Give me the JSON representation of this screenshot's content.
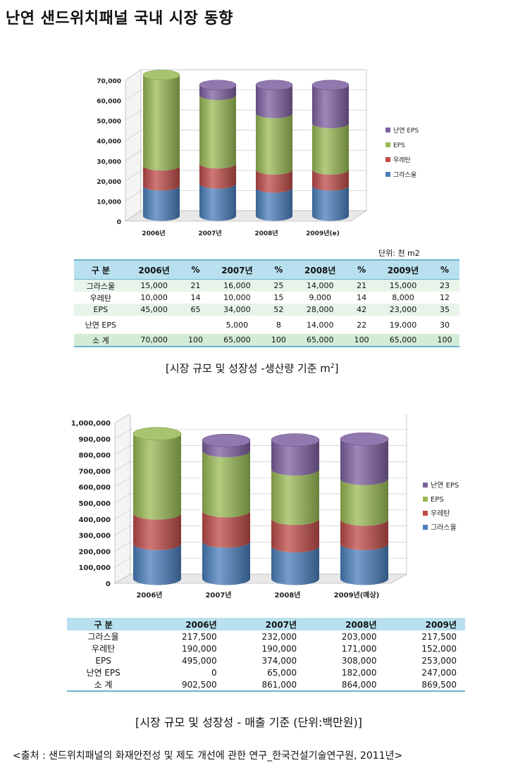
{
  "title": "난연 샌드위치패널 국내 시장 동향",
  "colors": {
    "glasswool": "#4a7ebb",
    "urethane": "#be4b48",
    "eps": "#98b954",
    "fr_eps": "#7d60a0",
    "table_header": "#b9e0ef",
    "table_row": "#e7f4ea"
  },
  "chart_data": [
    {
      "type": "bar",
      "stacked": true,
      "categories": [
        "2006년",
        "2007년",
        "2008년",
        "2009년(e)"
      ],
      "series": [
        {
          "name": "그라스울",
          "values": [
            15000,
            16000,
            14000,
            15000
          ]
        },
        {
          "name": "우레탄",
          "values": [
            10000,
            10000,
            9000,
            8000
          ]
        },
        {
          "name": "EPS",
          "values": [
            45000,
            34000,
            28000,
            23000
          ]
        },
        {
          "name": "난연 EPS",
          "values": [
            0,
            5000,
            14000,
            19000
          ]
        }
      ],
      "yticks": [
        "0",
        "10,000",
        "20,000",
        "30,000",
        "40,000",
        "50,000",
        "60,000",
        "70,000"
      ],
      "ylim": [
        0,
        70000
      ],
      "legend": "right"
    },
    {
      "type": "bar",
      "stacked": true,
      "categories": [
        "2006년",
        "2007년",
        "2008년",
        "2009년(예상)"
      ],
      "series": [
        {
          "name": "그라스울",
          "values": [
            217500,
            232000,
            203000,
            217500
          ]
        },
        {
          "name": "우레탄",
          "values": [
            190000,
            190000,
            171000,
            152000
          ]
        },
        {
          "name": "EPS",
          "values": [
            495000,
            374000,
            308000,
            253000
          ]
        },
        {
          "name": "난연 EPS",
          "values": [
            0,
            65000,
            182000,
            247000
          ]
        }
      ],
      "yticks": [
        "0",
        "100,000",
        "200,000",
        "300,000",
        "400,000",
        "500,000",
        "600,000",
        "700,000",
        "800,000",
        "900,000",
        "1,000,000"
      ],
      "ylim": [
        0,
        1000000
      ],
      "legend": "right"
    }
  ],
  "table1": {
    "unit": "단위: 천 m2",
    "headers": [
      "구 분",
      "2006년",
      "%",
      "2007년",
      "%",
      "2008년",
      "%",
      "2009년",
      "%"
    ],
    "rows": [
      [
        "그라스울",
        "15,000",
        "21",
        "16,000",
        "25",
        "14,000",
        "21",
        "15,000",
        "23"
      ],
      [
        "우레탄",
        "10,000",
        "14",
        "10,000",
        "15",
        "9,000",
        "14",
        "8,000",
        "12"
      ],
      [
        "EPS",
        "45,000",
        "65",
        "34,000",
        "52",
        "28,000",
        "42",
        "23,000",
        "35"
      ],
      [
        "난연 EPS",
        "",
        "",
        "5,000",
        "8",
        "14,000",
        "22",
        "19,000",
        "30"
      ],
      [
        "소 계",
        "70,000",
        "100",
        "65,000",
        "100",
        "65,000",
        "100",
        "65,000",
        "100"
      ]
    ]
  },
  "caption1": "[시장 규모 및 성장성 -생산량 기준 m",
  "caption1_sup": "2",
  "caption1_end": "]",
  "table2": {
    "headers": [
      "구 분",
      "2006년",
      "2007년",
      "2008년",
      "2009년"
    ],
    "rows": [
      [
        "그라스울",
        "217,500",
        "232,000",
        "203,000",
        "217,500"
      ],
      [
        "우레탄",
        "190,000",
        "190,000",
        "171,000",
        "152,000"
      ],
      [
        "EPS",
        "495,000",
        "374,000",
        "308,000",
        "253,000"
      ],
      [
        "난연 EPS",
        "0",
        "65,000",
        "182,000",
        "247,000"
      ],
      [
        "소 계",
        "902,500",
        "861,000",
        "864,000",
        "869,500"
      ]
    ]
  },
  "caption2": "[시장 규모 및 성장성 - 매출 기준 (단위:백만원)]",
  "source": "<출처 : 샌드위치패널의 화재안전성 및 제도 개선에 관한 연구_한국건설기술연구원, 2011년>"
}
